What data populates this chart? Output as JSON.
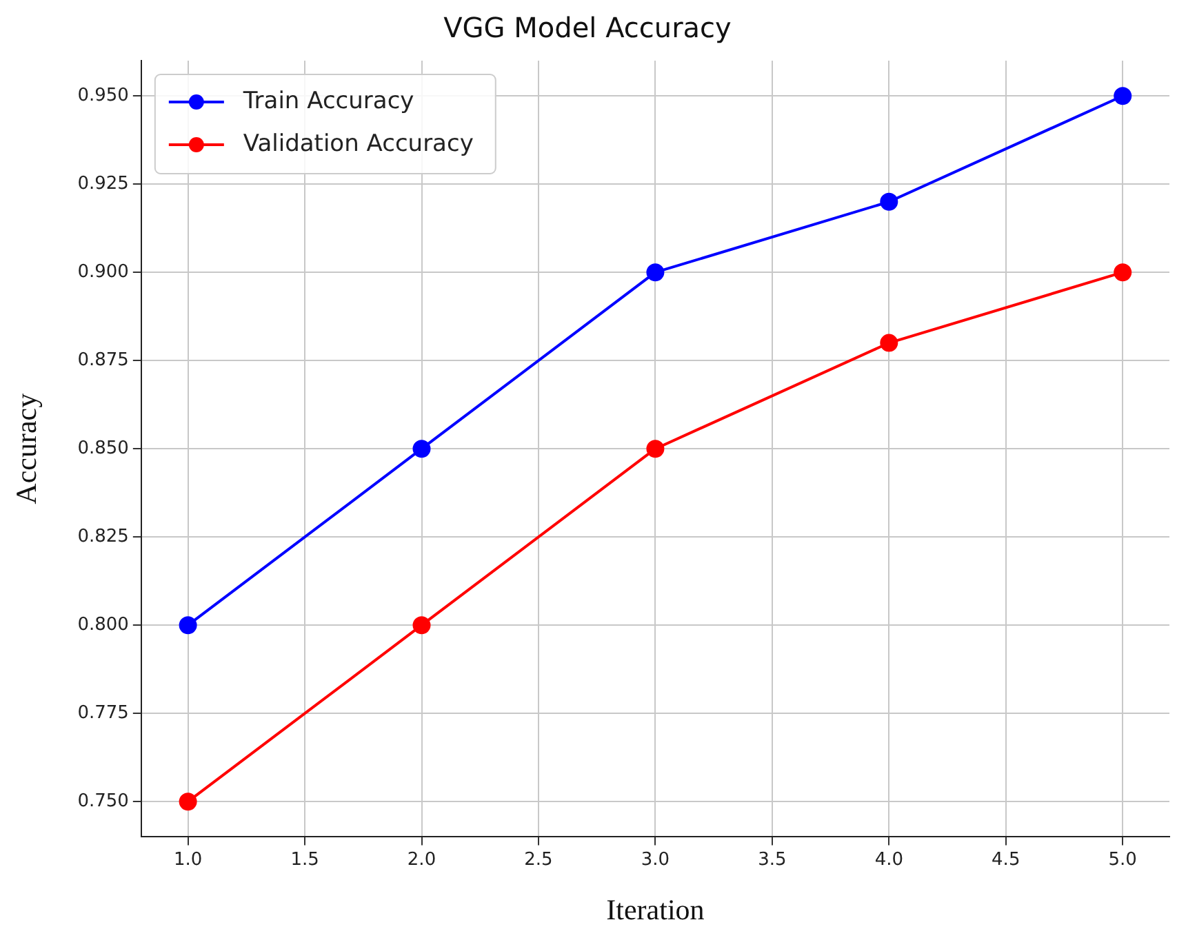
{
  "chart_data": {
    "type": "line",
    "title": "VGG Model Accuracy",
    "xlabel": "Iteration",
    "ylabel": "Accuracy",
    "x": [
      1,
      2,
      3,
      4,
      5
    ],
    "series": [
      {
        "name": "Train Accuracy",
        "color": "#0000ff",
        "values": [
          0.8,
          0.85,
          0.9,
          0.92,
          0.95
        ]
      },
      {
        "name": "Validation Accuracy",
        "color": "#ff0000",
        "values": [
          0.75,
          0.8,
          0.85,
          0.88,
          0.9
        ]
      }
    ],
    "xlim": [
      0.8,
      5.2
    ],
    "xticks": [
      {
        "value": 1,
        "label": "1.0"
      },
      {
        "value": 1.5,
        "label": "1.5"
      },
      {
        "value": 2,
        "label": "2.0"
      },
      {
        "value": 2.5,
        "label": "2.5"
      },
      {
        "value": 3,
        "label": "3.0"
      },
      {
        "value": 3.5,
        "label": "3.5"
      },
      {
        "value": 4,
        "label": "4.0"
      },
      {
        "value": 4.5,
        "label": "4.5"
      },
      {
        "value": 5,
        "label": "5.0"
      }
    ],
    "ylim": [
      0.74,
      0.96
    ],
    "yticks": [
      {
        "value": 0.75,
        "label": "0.750"
      },
      {
        "value": 0.775,
        "label": "0.775"
      },
      {
        "value": 0.8,
        "label": "0.800"
      },
      {
        "value": 0.825,
        "label": "0.825"
      },
      {
        "value": 0.85,
        "label": "0.850"
      },
      {
        "value": 0.875,
        "label": "0.875"
      },
      {
        "value": 0.9,
        "label": "0.900"
      },
      {
        "value": 0.925,
        "label": "0.925"
      },
      {
        "value": 0.95,
        "label": "0.950"
      }
    ],
    "grid": true,
    "legend": "top left",
    "marker": "circle",
    "line_style": "solid"
  }
}
